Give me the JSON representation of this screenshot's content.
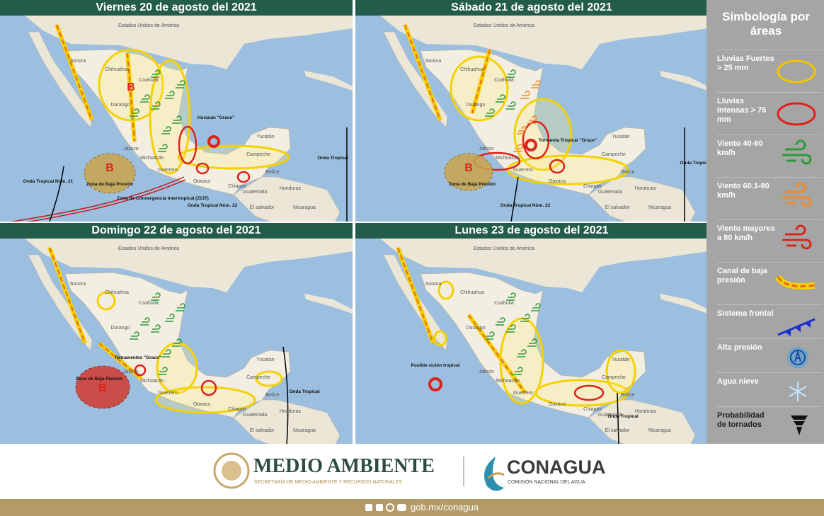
{
  "panels": [
    {
      "title": "Viernes 20 de agosto del 2021",
      "places": [
        "Estados Unidos de América",
        "Sonora",
        "Chihuahua",
        "Coahuila",
        "Durango",
        "Jalisco",
        "Michoacán",
        "Guerrero",
        "Oaxaca",
        "Chiapas",
        "Yucatán",
        "Campeche",
        "Belice",
        "Guatemala",
        "Honduras",
        "El salvador",
        "Nicaragua"
      ],
      "notes": [
        "Huracán \"Grace\"",
        "B",
        "B",
        "Zona de Baja Presión",
        "Zona de Convergencia Intertropical (ZCIT)",
        "Onda Tropical Núm. 21",
        "Onda Tropical Núm. 22",
        "Onda Tropical"
      ]
    },
    {
      "title": "Sábado 21 de agosto del 2021",
      "places": [
        "Estados Unidos de América",
        "Sonora",
        "Chihuahua",
        "Coahuila",
        "Durango",
        "Jalisco",
        "Michoacán",
        "Guerrero",
        "Oaxaca",
        "Chiapas",
        "Yucatán",
        "Campeche",
        "Belice",
        "Guatemala",
        "Honduras",
        "El salvador",
        "Nicaragua"
      ],
      "notes": [
        "Tormenta Tropical \"Grace\"",
        "B",
        "Zona de Baja Presión",
        "Onda Tropical Núm. 22",
        "Onda Tropical"
      ]
    },
    {
      "title": "Domingo 22 de agosto del 2021",
      "places": [
        "Estados Unidos de América",
        "Sonora",
        "Chihuahua",
        "Coahuila",
        "Durango",
        "Jalisco",
        "Michoacán",
        "Guerrero",
        "Oaxaca",
        "Chiapas",
        "Yucatán",
        "Campeche",
        "Belice",
        "Guatemala",
        "Honduras",
        "El salvador",
        "Nicaragua"
      ],
      "notes": [
        "Remanentes \"Grace\"",
        "B",
        "Zona de Baja Presión",
        "Onda Tropical"
      ]
    },
    {
      "title": "Lunes 23 de agosto del 2021",
      "places": [
        "Estados Unidos de América",
        "Sonora",
        "Chihuahua",
        "Coahuila",
        "Durango",
        "Jalisco",
        "Michoacán",
        "Guerrero",
        "Oaxaca",
        "Chiapas",
        "Yucatán",
        "Campeche",
        "Belice",
        "Guatemala",
        "Honduras",
        "El salvador",
        "Nicaragua"
      ],
      "notes": [
        "Posible ciclón tropical",
        "Onda Tropical"
      ]
    }
  ],
  "legend": {
    "title": "Simbología por áreas",
    "items": [
      "Lluvias Fuertes > 25 mm",
      "Lluvias Intensas > 75 mm",
      "Viento 40-60 km/h",
      "Viento 60.1-80 km/h",
      "Viento mayores a 80 km/h",
      "Canal de baja presión",
      "Sistema frontal",
      "Alta presión",
      "Agua nieve",
      "Probabilidad de tornados"
    ]
  },
  "footer": {
    "ministry": "MEDIO AMBIENTE",
    "ministry_full": "SECRETARÍA DE MEDIO AMBIENTE Y RECURSOS NATURALES",
    "agency": "CONAGUA",
    "agency_full": "COMISIÓN NACIONAL DEL AGUA",
    "url": "gob.mx/conagua"
  }
}
